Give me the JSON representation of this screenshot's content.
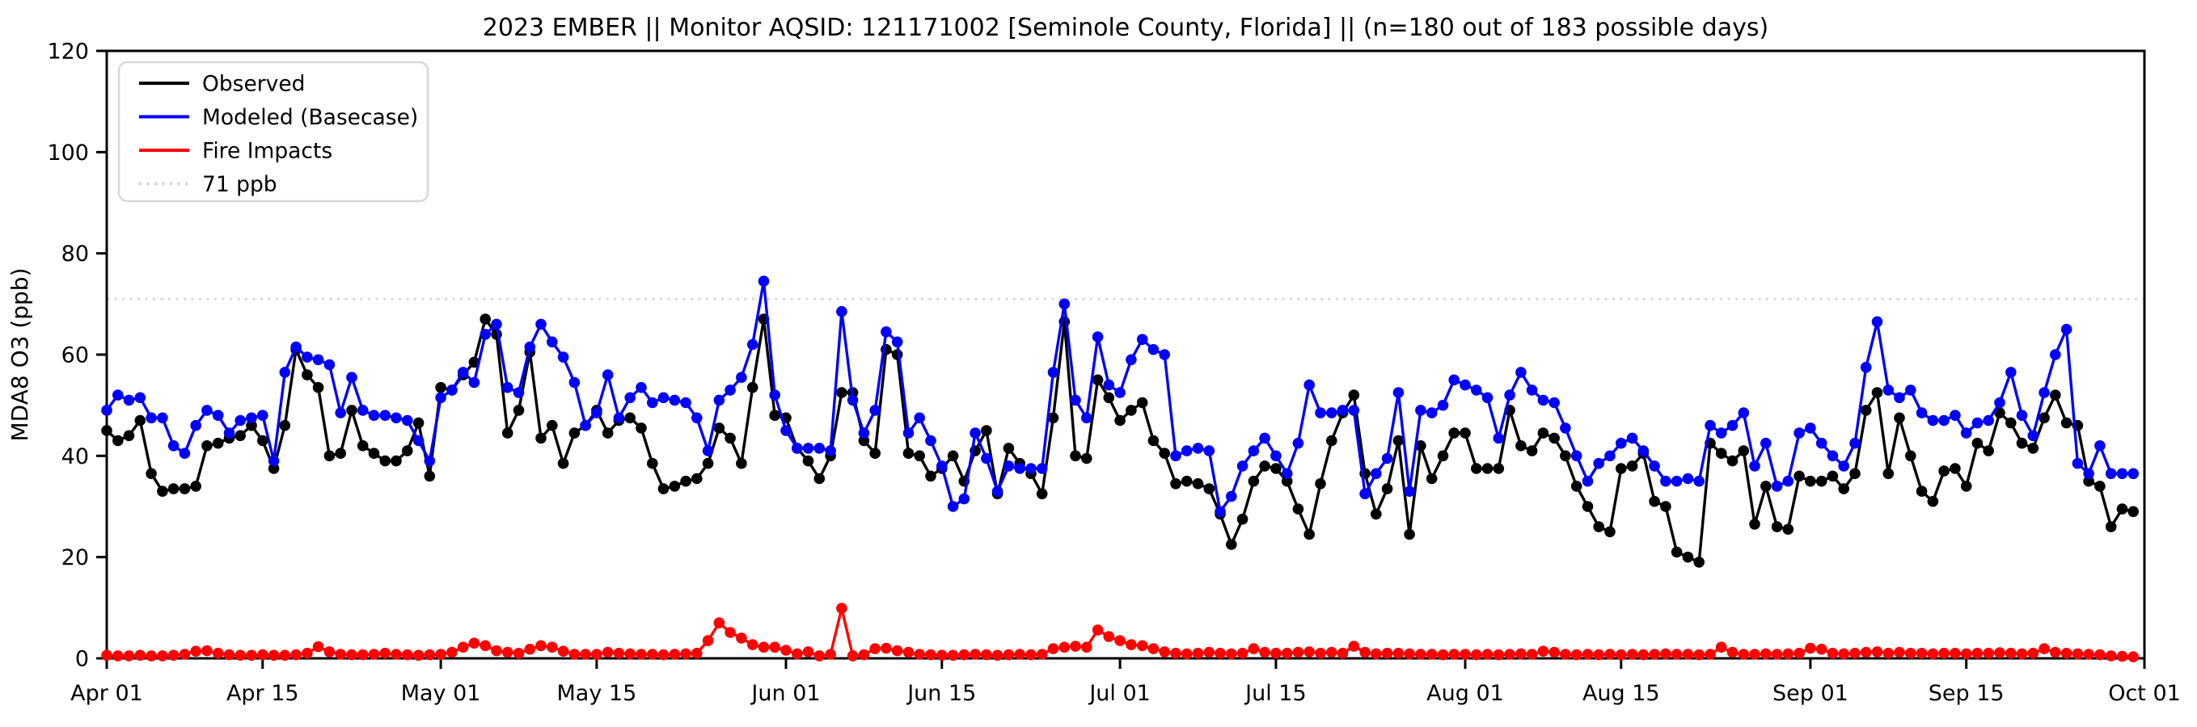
{
  "page": {
    "title": "2023 EMBER || Monitor AQSID: 121171002 [Seminole County, Florida] || (n=180 out of 183 possible days)"
  },
  "chart_data": {
    "type": "line",
    "title": "2023 EMBER || Monitor AQSID: 121171002 [Seminole County, Florida] || (n=180 out of 183 possible days)",
    "xlabel": "",
    "ylabel": "MDA8 O3 (ppb)",
    "ylim": [
      0,
      120
    ],
    "yticks": [
      0,
      20,
      40,
      60,
      80,
      100,
      120
    ],
    "x_range_days": 183,
    "x_tick_days": [
      0,
      14,
      30,
      44,
      61,
      75,
      91,
      105,
      122,
      136,
      153,
      167,
      183
    ],
    "x_tick_labels": [
      "Apr 01",
      "Apr 15",
      "May 01",
      "May 15",
      "Jun 01",
      "Jun 15",
      "Jul 01",
      "Jul 15",
      "Aug 01",
      "Aug 15",
      "Sep 01",
      "Sep 15",
      "Oct 01"
    ],
    "grid": false,
    "legend_position": "upper-left",
    "background_color": "#ffffff",
    "threshold_line": {
      "value": 71,
      "label": "71 ppb",
      "color": "#d3d3d3",
      "style": "dotted"
    },
    "series": [
      {
        "name": "Observed",
        "color": "#000000",
        "marker": "circle",
        "values": [
          45,
          43,
          44,
          47,
          36.5,
          33,
          33.5,
          33.5,
          34,
          42,
          42.5,
          43.5,
          44,
          46,
          43,
          37.5,
          46,
          61,
          56,
          53.5,
          40,
          40.5,
          49,
          42,
          40.5,
          39,
          39,
          41,
          46.5,
          36,
          53.5,
          53,
          56,
          58.5,
          67,
          64,
          44.5,
          49,
          60.5,
          43.5,
          46,
          38.5,
          44.5,
          46,
          49,
          44.5,
          47,
          47.5,
          45.5,
          38.5,
          33.5,
          34,
          35,
          35.5,
          38.5,
          45.5,
          43.5,
          38.5,
          53.5,
          67,
          48,
          47.5,
          41.5,
          39,
          35.5,
          40,
          52.5,
          52.5,
          43,
          40.5,
          61,
          60,
          40.5,
          40,
          36,
          37.5,
          40,
          35,
          41,
          45,
          32.5,
          41.5,
          38.5,
          36.5,
          32.5,
          47.5,
          66.5,
          40,
          39.5,
          55,
          51.5,
          47,
          49,
          50.5,
          43,
          40.5,
          34.5,
          35,
          34.5,
          33.5,
          28.5,
          22.5,
          27.5,
          35,
          38,
          37.5,
          35,
          29.5,
          24.5,
          34.5,
          43,
          48.5,
          52,
          36.5,
          28.5,
          33.5,
          43,
          24.5,
          42,
          35.5,
          40,
          44.5,
          44.5,
          37.5,
          37.5,
          37.5,
          49,
          42,
          41,
          44.5,
          43.5,
          40,
          34,
          30,
          26,
          25,
          37.5,
          38,
          40.5,
          31,
          30,
          21,
          20,
          19,
          42.5,
          40.5,
          39,
          41,
          26.5,
          34,
          26,
          25.5,
          36,
          35,
          35,
          36,
          33.5,
          36.5,
          49,
          52.5,
          36.5,
          47.5,
          40,
          33,
          31,
          37,
          37.5,
          34,
          42.5,
          41,
          48.5,
          46.5,
          42.5,
          41.5,
          47.5,
          52,
          46.5,
          46,
          35,
          34,
          26,
          29.5,
          29
        ]
      },
      {
        "name": "Modeled (Basecase)",
        "color": "#0000ff",
        "marker": "circle",
        "values": [
          49,
          52,
          51,
          51.5,
          47.5,
          47.5,
          42,
          40.5,
          46,
          49,
          48,
          44.5,
          47,
          47.5,
          48,
          39,
          56.5,
          61.5,
          59.5,
          59,
          58,
          48.5,
          55.5,
          49,
          48,
          48,
          47.5,
          47,
          43,
          39,
          51.5,
          53,
          56.5,
          54.5,
          64,
          66,
          53.5,
          52.5,
          61.5,
          66,
          62.5,
          59.5,
          54.5,
          46,
          48.5,
          56,
          47.5,
          51.5,
          53.5,
          50.5,
          51.5,
          51,
          50.5,
          47.5,
          41,
          51,
          53,
          55.5,
          62,
          74.5,
          52,
          45,
          41.5,
          41.5,
          41.5,
          41,
          68.5,
          51,
          44.5,
          49,
          64.5,
          62.5,
          44.5,
          47.5,
          43,
          38,
          30,
          31.5,
          44.5,
          39.5,
          33,
          38,
          37.5,
          37.5,
          37.5,
          56.5,
          70,
          51,
          47.5,
          63.5,
          54,
          52.5,
          59,
          63,
          61,
          60,
          40,
          41,
          41.5,
          41,
          29,
          32,
          38,
          41,
          43.5,
          40,
          36.5,
          42.5,
          54,
          48.5,
          48.5,
          49,
          49,
          32.5,
          36.5,
          39.5,
          52.5,
          33,
          49,
          48.5,
          50,
          55,
          54,
          53,
          51.5,
          43.5,
          52,
          56.5,
          53,
          51,
          50.5,
          45.5,
          40,
          35,
          38.5,
          40,
          42.5,
          43.5,
          41,
          38,
          35,
          35,
          35.5,
          35,
          46,
          44.5,
          46,
          48.5,
          38,
          42.5,
          34,
          35,
          44.5,
          45.5,
          42.5,
          40,
          38,
          42.5,
          57.5,
          66.5,
          53,
          51.5,
          53,
          48.5,
          47,
          47,
          48,
          44.5,
          46.5,
          47,
          50.5,
          56.5,
          48,
          44,
          52.5,
          60,
          65,
          38.5,
          36.5,
          42,
          36.5,
          36.5,
          36.5
        ]
      },
      {
        "name": "Fire Impacts",
        "color": "#ff0000",
        "marker": "circle",
        "values": [
          0.6,
          0.5,
          0.5,
          0.6,
          0.5,
          0.5,
          0.6,
          0.8,
          1.4,
          1.5,
          1.0,
          0.7,
          0.6,
          0.6,
          0.7,
          0.6,
          0.6,
          0.7,
          1.0,
          2.3,
          1.3,
          0.8,
          0.7,
          0.7,
          0.8,
          1.0,
          0.8,
          0.7,
          0.6,
          0.7,
          0.8,
          1.2,
          2.2,
          3.0,
          2.5,
          1.5,
          1.2,
          1.0,
          1.8,
          2.5,
          2.2,
          1.4,
          0.8,
          0.8,
          0.8,
          1.2,
          1.0,
          0.9,
          0.8,
          0.8,
          0.7,
          0.8,
          0.9,
          1.0,
          3.5,
          7.0,
          5.1,
          4.0,
          2.7,
          2.2,
          2.2,
          1.6,
          0.9,
          1.3,
          0.5,
          0.8,
          9.9,
          0.5,
          0.7,
          1.9,
          2.0,
          1.5,
          1.2,
          0.8,
          0.7,
          0.6,
          0.6,
          0.7,
          0.8,
          0.7,
          0.6,
          0.7,
          0.8,
          0.7,
          0.8,
          1.9,
          2.2,
          2.4,
          2.2,
          5.6,
          4.3,
          3.5,
          2.7,
          2.5,
          1.9,
          1.3,
          1.0,
          0.9,
          1.0,
          1.2,
          1.0,
          0.9,
          1.0,
          1.9,
          1.2,
          1.0,
          1.0,
          1.2,
          1.3,
          1.0,
          1.2,
          1.0,
          2.4,
          1.2,
          0.9,
          1.0,
          1.0,
          0.9,
          0.8,
          0.8,
          0.7,
          0.8,
          0.8,
          0.7,
          0.8,
          0.7,
          0.8,
          0.9,
          0.8,
          1.4,
          1.2,
          0.8,
          0.7,
          0.8,
          0.7,
          0.8,
          0.7,
          0.8,
          0.7,
          0.8,
          0.9,
          0.8,
          0.8,
          0.7,
          0.8,
          2.2,
          1.2,
          0.8,
          0.8,
          0.9,
          0.8,
          0.9,
          1.0,
          2.0,
          1.8,
          1.0,
          0.9,
          1.0,
          1.2,
          1.3,
          1.0,
          1.2,
          1.0,
          1.0,
          0.9,
          1.0,
          1.0,
          0.9,
          1.0,
          1.0,
          1.1,
          1.0,
          0.9,
          1.0,
          1.9,
          1.2,
          1.0,
          0.9,
          0.8,
          0.7,
          0.5,
          0.4,
          0.3
        ]
      }
    ]
  }
}
